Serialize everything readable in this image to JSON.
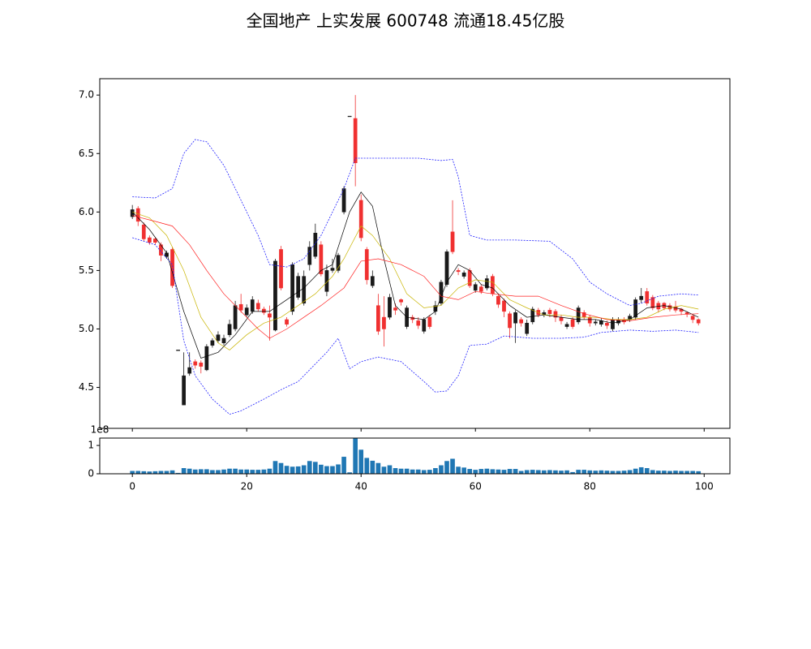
{
  "chart_data": [
    {
      "type": "candlestick",
      "title": "全国地产 上实发展 600748 流通18.45亿股",
      "up_color": "#1a1a1a",
      "down_color": "#f03030",
      "x": [
        0,
        1,
        2,
        3,
        4,
        5,
        6,
        7,
        8,
        9,
        10,
        11,
        12,
        13,
        14,
        15,
        16,
        17,
        18,
        19,
        20,
        21,
        22,
        23,
        24,
        25,
        26,
        27,
        28,
        29,
        30,
        31,
        32,
        33,
        34,
        35,
        36,
        37,
        38,
        39,
        40,
        41,
        42,
        43,
        44,
        45,
        46,
        47,
        48,
        49,
        50,
        51,
        52,
        53,
        54,
        55,
        56,
        57,
        58,
        59,
        60,
        61,
        62,
        63,
        64,
        65,
        66,
        67,
        68,
        69,
        70,
        71,
        72,
        73,
        74,
        75,
        76,
        77,
        78,
        79,
        80,
        81,
        82,
        83,
        84,
        85,
        86,
        87,
        88,
        89,
        90,
        91,
        92,
        93,
        94,
        95,
        96,
        97,
        98,
        99
      ],
      "open": [
        5.96,
        6.03,
        5.89,
        5.78,
        5.77,
        5.72,
        5.62,
        5.68,
        4.82,
        4.35,
        4.62,
        4.72,
        4.71,
        4.65,
        4.86,
        4.9,
        4.88,
        4.95,
        5.0,
        5.21,
        5.12,
        5.15,
        5.22,
        5.17,
        5.13,
        4.99,
        5.68,
        5.08,
        5.15,
        5.27,
        5.22,
        5.55,
        5.62,
        5.72,
        5.32,
        5.5,
        5.5,
        6.0,
        6.82,
        6.8,
        6.1,
        5.68,
        5.37,
        5.2,
        5.1,
        5.1,
        5.18,
        5.25,
        5.02,
        5.1,
        5.07,
        4.98,
        5.1,
        5.15,
        5.22,
        5.38,
        5.83,
        5.5,
        5.45,
        5.5,
        5.33,
        5.36,
        5.35,
        5.45,
        5.28,
        5.24,
        5.13,
        5.05,
        5.08,
        4.96,
        5.06,
        5.16,
        5.12,
        5.16,
        5.15,
        5.1,
        5.02,
        5.08,
        5.06,
        5.14,
        5.1,
        5.05,
        5.04,
        5.05,
        5.0,
        5.05,
        5.08,
        5.08,
        5.1,
        5.25,
        5.32,
        5.27,
        5.22,
        5.22,
        5.2,
        5.19,
        5.17,
        5.14,
        5.11,
        5.08
      ],
      "high": [
        6.06,
        6.05,
        5.91,
        5.8,
        5.78,
        5.74,
        5.67,
        5.7,
        4.82,
        4.8,
        4.8,
        4.74,
        4.73,
        4.87,
        4.92,
        4.98,
        4.95,
        5.08,
        5.24,
        5.3,
        5.21,
        5.28,
        5.25,
        5.19,
        5.2,
        5.6,
        5.71,
        5.1,
        5.57,
        5.48,
        5.5,
        5.75,
        5.9,
        5.75,
        5.55,
        5.6,
        5.65,
        6.22,
        6.82,
        7.0,
        6.15,
        5.7,
        5.5,
        5.3,
        5.28,
        5.3,
        5.22,
        5.26,
        5.2,
        5.12,
        5.1,
        5.1,
        5.12,
        5.24,
        5.42,
        5.68,
        6.1,
        5.52,
        5.5,
        5.52,
        5.4,
        5.38,
        5.46,
        5.47,
        5.3,
        5.26,
        5.15,
        5.16,
        5.1,
        5.08,
        5.19,
        5.18,
        5.16,
        5.18,
        5.17,
        5.12,
        5.06,
        5.1,
        5.2,
        5.16,
        5.12,
        5.08,
        5.09,
        5.07,
        5.1,
        5.1,
        5.1,
        5.13,
        5.27,
        5.35,
        5.35,
        5.29,
        5.24,
        5.23,
        5.22,
        5.24,
        5.18,
        5.15,
        5.12,
        5.09
      ],
      "low": [
        5.94,
        5.88,
        5.75,
        5.72,
        5.72,
        5.58,
        5.6,
        5.35,
        4.82,
        4.35,
        4.6,
        4.66,
        4.62,
        4.64,
        4.84,
        4.88,
        4.86,
        4.93,
        4.98,
        5.14,
        5.1,
        5.13,
        5.15,
        5.12,
        4.9,
        4.98,
        5.33,
        5.02,
        5.12,
        5.25,
        5.2,
        5.5,
        5.6,
        5.45,
        5.28,
        5.48,
        5.48,
        5.98,
        6.82,
        6.22,
        5.75,
        5.38,
        5.35,
        4.95,
        4.85,
        5.08,
        5.12,
        5.2,
        5.0,
        5.05,
        5.0,
        4.96,
        5.0,
        5.12,
        5.2,
        5.36,
        5.64,
        5.46,
        5.43,
        5.35,
        5.31,
        5.3,
        5.33,
        5.28,
        5.18,
        5.1,
        4.92,
        4.88,
        5.02,
        4.94,
        5.04,
        5.1,
        5.1,
        5.1,
        5.06,
        5.04,
        5.0,
        5.0,
        5.04,
        5.08,
        5.02,
        5.03,
        5.02,
        5.0,
        4.98,
        5.03,
        5.04,
        5.06,
        5.08,
        5.22,
        5.2,
        5.16,
        5.14,
        5.16,
        5.15,
        5.14,
        5.12,
        5.1,
        5.05,
        5.03
      ],
      "close": [
        6.02,
        5.92,
        5.77,
        5.74,
        5.74,
        5.63,
        5.65,
        5.37,
        4.82,
        4.6,
        4.67,
        4.69,
        4.68,
        4.85,
        4.9,
        4.95,
        4.92,
        5.04,
        5.2,
        5.16,
        5.18,
        5.25,
        5.17,
        5.14,
        5.1,
        5.58,
        5.35,
        5.04,
        5.55,
        5.45,
        5.45,
        5.7,
        5.82,
        5.47,
        5.5,
        5.52,
        5.63,
        6.2,
        6.82,
        6.42,
        5.78,
        5.42,
        5.45,
        4.98,
        5.0,
        5.27,
        5.16,
        5.23,
        5.18,
        5.08,
        5.03,
        5.08,
        5.02,
        5.2,
        5.4,
        5.66,
        5.66,
        5.49,
        5.48,
        5.37,
        5.38,
        5.32,
        5.43,
        5.3,
        5.21,
        5.15,
        5.01,
        5.14,
        5.05,
        5.05,
        5.17,
        5.12,
        5.14,
        5.13,
        5.1,
        5.07,
        5.04,
        5.02,
        5.18,
        5.1,
        5.05,
        5.06,
        5.07,
        5.03,
        5.08,
        5.08,
        5.06,
        5.11,
        5.25,
        5.28,
        5.22,
        5.18,
        5.17,
        5.18,
        5.17,
        5.16,
        5.15,
        5.13,
        5.08,
        5.05
      ],
      "lines": [
        {
          "color": "#000000",
          "dash": false,
          "x": [
            0,
            3,
            6,
            9,
            12,
            15,
            18,
            21,
            24,
            27,
            30,
            33,
            35,
            38,
            40,
            42,
            44,
            46,
            48,
            51,
            53,
            55,
            57,
            59,
            61,
            63,
            66,
            69,
            72,
            75,
            78,
            81,
            84,
            87,
            90,
            93,
            96,
            99
          ],
          "values": [
            6.0,
            5.85,
            5.65,
            5.15,
            4.75,
            4.8,
            4.95,
            5.15,
            5.15,
            5.25,
            5.35,
            5.5,
            5.55,
            6.0,
            6.17,
            6.05,
            5.6,
            5.2,
            5.1,
            5.08,
            5.15,
            5.4,
            5.55,
            5.5,
            5.38,
            5.35,
            5.2,
            5.1,
            5.12,
            5.1,
            5.08,
            5.08,
            5.05,
            5.08,
            5.18,
            5.2,
            5.17,
            5.1
          ]
        },
        {
          "color": "#c8b400",
          "dash": false,
          "x": [
            0,
            3,
            6,
            9,
            12,
            15,
            17,
            20,
            23,
            26,
            29,
            32,
            35,
            37,
            40,
            42,
            45,
            48,
            51,
            54,
            57,
            60,
            63,
            66,
            69,
            72,
            75,
            78,
            81,
            84,
            87,
            90,
            93,
            96,
            99
          ],
          "values": [
            6.0,
            5.95,
            5.8,
            5.5,
            5.1,
            4.88,
            4.82,
            4.95,
            5.05,
            5.1,
            5.2,
            5.3,
            5.45,
            5.6,
            5.88,
            5.8,
            5.6,
            5.3,
            5.18,
            5.2,
            5.35,
            5.42,
            5.4,
            5.25,
            5.18,
            5.12,
            5.12,
            5.1,
            5.1,
            5.08,
            5.08,
            5.1,
            5.17,
            5.2,
            5.17
          ]
        },
        {
          "color": "#ff2020",
          "dash": false,
          "x": [
            0,
            4,
            7,
            10,
            13,
            16,
            19,
            22,
            24,
            27,
            30,
            33,
            37,
            40,
            43,
            47,
            51,
            54,
            57,
            60,
            63,
            67,
            71,
            75,
            79,
            83,
            87,
            91,
            95,
            99
          ],
          "values": [
            5.97,
            5.92,
            5.88,
            5.72,
            5.5,
            5.3,
            5.15,
            5.0,
            4.92,
            5.0,
            5.1,
            5.2,
            5.35,
            5.58,
            5.6,
            5.55,
            5.45,
            5.28,
            5.25,
            5.32,
            5.3,
            5.28,
            5.28,
            5.2,
            5.13,
            5.08,
            5.07,
            5.1,
            5.12,
            5.13
          ]
        },
        {
          "color": "#2020ff",
          "dash": true,
          "x": [
            0,
            4,
            7,
            9,
            11,
            13,
            16,
            19,
            22,
            24,
            27,
            30,
            33,
            35,
            37,
            39,
            45,
            50,
            54,
            56,
            57,
            59,
            62,
            67,
            73,
            77,
            80,
            83,
            87,
            89,
            92,
            96,
            99
          ],
          "values": [
            6.13,
            6.12,
            6.2,
            6.5,
            6.62,
            6.6,
            6.4,
            6.1,
            5.8,
            5.55,
            5.53,
            5.6,
            5.8,
            6.0,
            6.2,
            6.46,
            6.46,
            6.46,
            6.44,
            6.45,
            6.3,
            5.8,
            5.76,
            5.76,
            5.75,
            5.6,
            5.4,
            5.3,
            5.2,
            5.22,
            5.28,
            5.3,
            5.29
          ]
        },
        {
          "color": "#2020ff",
          "dash": true,
          "x": [
            0,
            4,
            7,
            9,
            11,
            14,
            17,
            19,
            23,
            26,
            29,
            32,
            34,
            36,
            38,
            40,
            43,
            47,
            51,
            53,
            55,
            57,
            59,
            62,
            65,
            70,
            75,
            79,
            82,
            87,
            91,
            95,
            99
          ],
          "values": [
            5.78,
            5.72,
            5.55,
            4.9,
            4.6,
            4.4,
            4.27,
            4.3,
            4.4,
            4.48,
            4.55,
            4.7,
            4.8,
            4.92,
            4.66,
            4.72,
            4.76,
            4.72,
            4.55,
            4.46,
            4.47,
            4.6,
            4.86,
            4.87,
            4.94,
            4.92,
            4.92,
            4.93,
            4.97,
            4.99,
            4.98,
            4.99,
            4.97
          ]
        }
      ],
      "xlim": [
        -5.7,
        104.5
      ],
      "xticks": [
        0,
        20,
        40,
        60,
        80,
        100
      ],
      "ylim": [
        4.15,
        7.14
      ],
      "yticks": [
        4.5,
        {
          "value": 5,
          "label": "5.0"
        },
        5.5,
        {
          "value": 6,
          "label": "6.0"
        },
        6.5,
        {
          "value": 7,
          "label": "7.0"
        }
      ]
    },
    {
      "type": "bar",
      "color": "#1f77b4",
      "x": [
        0,
        1,
        2,
        3,
        4,
        5,
        6,
        7,
        8,
        9,
        10,
        11,
        12,
        13,
        14,
        15,
        16,
        17,
        18,
        19,
        20,
        21,
        22,
        23,
        24,
        25,
        26,
        27,
        28,
        29,
        30,
        31,
        32,
        33,
        34,
        35,
        36,
        37,
        38,
        39,
        40,
        41,
        42,
        43,
        44,
        45,
        46,
        47,
        48,
        49,
        50,
        51,
        52,
        53,
        54,
        55,
        56,
        57,
        58,
        59,
        60,
        61,
        62,
        63,
        64,
        65,
        66,
        67,
        68,
        69,
        70,
        71,
        72,
        73,
        74,
        75,
        76,
        77,
        78,
        79,
        80,
        81,
        82,
        83,
        84,
        85,
        86,
        87,
        88,
        89,
        90,
        91,
        92,
        93,
        94,
        95,
        96,
        97,
        98,
        99
      ],
      "values": [
        10000000.0,
        10000000.0,
        9000000.0,
        8000000.0,
        9000000.0,
        10000000.0,
        10000000.0,
        12000000.0,
        3000000.0,
        20000000.0,
        18000000.0,
        15000000.0,
        16000000.0,
        16000000.0,
        13000000.0,
        13000000.0,
        15000000.0,
        18000000.0,
        18000000.0,
        15000000.0,
        15000000.0,
        14000000.0,
        14000000.0,
        15000000.0,
        18000000.0,
        45000000.0,
        38000000.0,
        28000000.0,
        25000000.0,
        26000000.0,
        30000000.0,
        45000000.0,
        42000000.0,
        32000000.0,
        27000000.0,
        27000000.0,
        33000000.0,
        60000000.0,
        5000000.0,
        125000000.0,
        85000000.0,
        56000000.0,
        46000000.0,
        38000000.0,
        25000000.0,
        30000000.0,
        20000000.0,
        18000000.0,
        18000000.0,
        15000000.0,
        15000000.0,
        13000000.0,
        14000000.0,
        20000000.0,
        30000000.0,
        45000000.0,
        53000000.0,
        25000000.0,
        22000000.0,
        17000000.0,
        14000000.0,
        17000000.0,
        18000000.0,
        16000000.0,
        15000000.0,
        14000000.0,
        17000000.0,
        17000000.0,
        10000000.0,
        13000000.0,
        14000000.0,
        13000000.0,
        12000000.0,
        13000000.0,
        12000000.0,
        11000000.0,
        12000000.0,
        6000000.0,
        14000000.0,
        14000000.0,
        12000000.0,
        11000000.0,
        12000000.0,
        11000000.0,
        10000000.0,
        10000000.0,
        11000000.0,
        13000000.0,
        18000000.0,
        23000000.0,
        20000000.0,
        13000000.0,
        11000000.0,
        11000000.0,
        10000000.0,
        11000000.0,
        10000000.0,
        10000000.0,
        10000000.0,
        9000000.0
      ],
      "xlim": [
        -5.7,
        104.5
      ],
      "xticks": [
        0,
        20,
        40,
        60,
        80,
        100
      ],
      "ylim": [
        0,
        126000000
      ],
      "yticks": [
        0,
        {
          "value": 100000000,
          "label": "1"
        }
      ],
      "y_offset_label": "1e8"
    }
  ]
}
